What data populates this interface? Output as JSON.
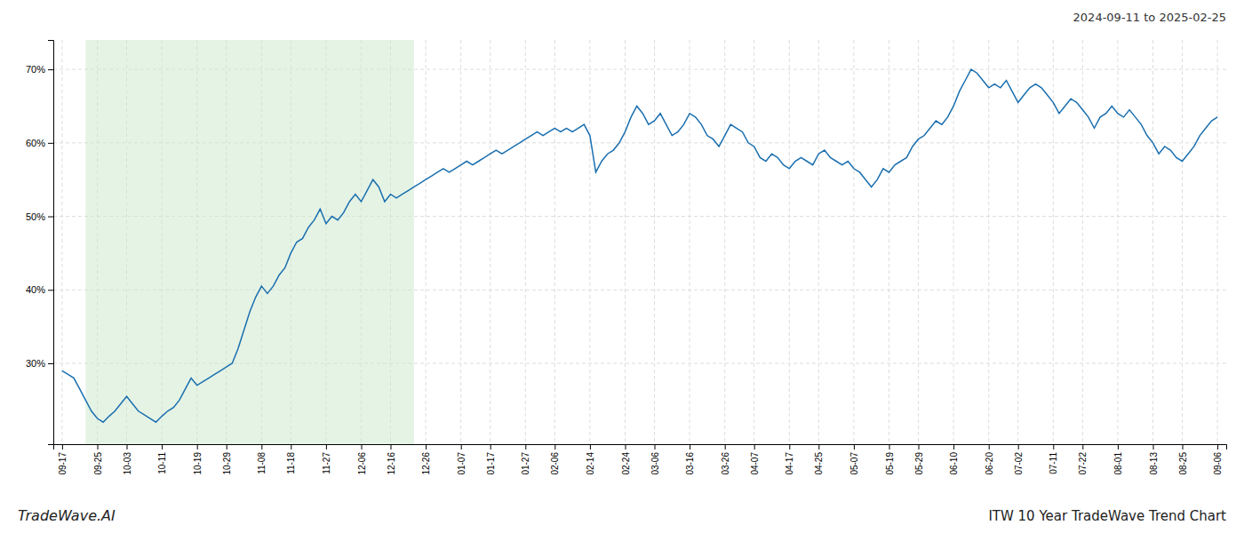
{
  "chart_data": {
    "type": "line",
    "title": "ITW 10 Year TradeWave Trend Chart",
    "subtitle": "2024-09-11 to 2025-02-25",
    "annotations": [
      "TradeWave.AI"
    ],
    "color": "#1a6faf",
    "grid": true,
    "line_style": "solid",
    "ylim": [
      19,
      74
    ],
    "yticks": [
      {
        "value": 30,
        "label": "30%"
      },
      {
        "value": 40,
        "label": "40%"
      },
      {
        "value": 50,
        "label": "50%"
      },
      {
        "value": 60,
        "label": "60%"
      },
      {
        "value": 70,
        "label": "70%"
      }
    ],
    "shade": {
      "start": 4,
      "end": 60,
      "color": "#d0ead0"
    },
    "categories": [
      "09-17",
      null,
      null,
      null,
      null,
      null,
      "09-25",
      null,
      null,
      null,
      null,
      "10-03",
      null,
      null,
      null,
      null,
      null,
      "10-11",
      null,
      null,
      null,
      null,
      null,
      "10-19",
      null,
      null,
      null,
      null,
      "10-29",
      null,
      null,
      null,
      null,
      null,
      "11-08",
      null,
      null,
      null,
      null,
      "11-18",
      null,
      null,
      null,
      null,
      null,
      "11-27",
      null,
      null,
      null,
      null,
      null,
      "12-06",
      null,
      null,
      null,
      null,
      "12-16",
      null,
      null,
      null,
      null,
      null,
      "12-26",
      null,
      null,
      null,
      null,
      null,
      "01-07",
      null,
      null,
      null,
      null,
      "01-17",
      null,
      null,
      null,
      null,
      null,
      "01-27",
      null,
      null,
      null,
      null,
      "02-06",
      null,
      null,
      null,
      null,
      null,
      "02-14",
      null,
      null,
      null,
      null,
      null,
      "02-24",
      null,
      null,
      null,
      null,
      "03-06",
      null,
      null,
      null,
      null,
      null,
      "03-16",
      null,
      null,
      null,
      null,
      null,
      "03-26",
      null,
      null,
      null,
      null,
      "04-07",
      null,
      null,
      null,
      null,
      null,
      "04-17",
      null,
      null,
      null,
      null,
      "04-25",
      null,
      null,
      null,
      null,
      null,
      "05-07",
      null,
      null,
      null,
      null,
      null,
      "05-19",
      null,
      null,
      null,
      null,
      "05-29",
      null,
      null,
      null,
      null,
      null,
      "06-10",
      null,
      null,
      null,
      null,
      null,
      "06-20",
      null,
      null,
      null,
      null,
      "07-02",
      null,
      null,
      null,
      null,
      null,
      "07-11",
      null,
      null,
      null,
      null,
      "07-22",
      null,
      null,
      null,
      null,
      null,
      "08-01",
      null,
      null,
      null,
      null,
      null,
      "08-13",
      null,
      null,
      null,
      null,
      "08-25",
      null,
      null,
      null,
      null,
      null,
      "09-06"
    ],
    "values": [
      29.0,
      28.5,
      28.0,
      26.5,
      25.0,
      23.5,
      22.5,
      22.0,
      22.8,
      23.5,
      24.5,
      25.5,
      24.5,
      23.5,
      23.0,
      22.5,
      22.0,
      22.8,
      23.5,
      24.0,
      25.0,
      26.5,
      28.0,
      27.0,
      27.5,
      28.0,
      28.5,
      29.0,
      29.5,
      30.0,
      32.0,
      34.5,
      37.0,
      39.0,
      40.5,
      39.5,
      40.5,
      42.0,
      43.0,
      45.0,
      46.5,
      47.0,
      48.5,
      49.5,
      51.0,
      49.0,
      50.0,
      49.5,
      50.5,
      52.0,
      53.0,
      52.0,
      53.5,
      55.0,
      54.0,
      52.0,
      53.0,
      52.5,
      53.0,
      53.5,
      54.0,
      54.5,
      55.0,
      55.5,
      56.0,
      56.5,
      56.0,
      56.5,
      57.0,
      57.5,
      57.0,
      57.5,
      58.0,
      58.5,
      59.0,
      58.5,
      59.0,
      59.5,
      60.0,
      60.5,
      61.0,
      61.5,
      61.0,
      61.5,
      62.0,
      61.5,
      62.0,
      61.5,
      62.0,
      62.5,
      61.0,
      56.0,
      57.5,
      58.5,
      59.0,
      60.0,
      61.5,
      63.5,
      65.0,
      64.0,
      62.5,
      63.0,
      64.0,
      62.5,
      61.0,
      61.5,
      62.5,
      64.0,
      63.5,
      62.5,
      61.0,
      60.5,
      59.5,
      61.0,
      62.5,
      62.0,
      61.5,
      60.0,
      59.5,
      58.0,
      57.5,
      58.5,
      58.0,
      57.0,
      56.5,
      57.5,
      58.0,
      57.5,
      57.0,
      58.5,
      59.0,
      58.0,
      57.5,
      57.0,
      57.5,
      56.5,
      56.0,
      55.0,
      54.0,
      55.0,
      56.5,
      56.0,
      57.0,
      57.5,
      58.0,
      59.5,
      60.5,
      61.0,
      62.0,
      63.0,
      62.5,
      63.5,
      65.0,
      67.0,
      68.5,
      70.0,
      69.5,
      68.5,
      67.5,
      68.0,
      67.5,
      68.5,
      67.0,
      65.5,
      66.5,
      67.5,
      68.0,
      67.5,
      66.5,
      65.5,
      64.0,
      65.0,
      66.0,
      65.5,
      64.5,
      63.5,
      62.0,
      63.5,
      64.0,
      65.0,
      64.0,
      63.5,
      64.5,
      63.5,
      62.5,
      61.0,
      60.0,
      58.5,
      59.5,
      59.0,
      58.0,
      57.5,
      58.5,
      59.5,
      61.0,
      62.0,
      63.0,
      63.5
    ]
  }
}
